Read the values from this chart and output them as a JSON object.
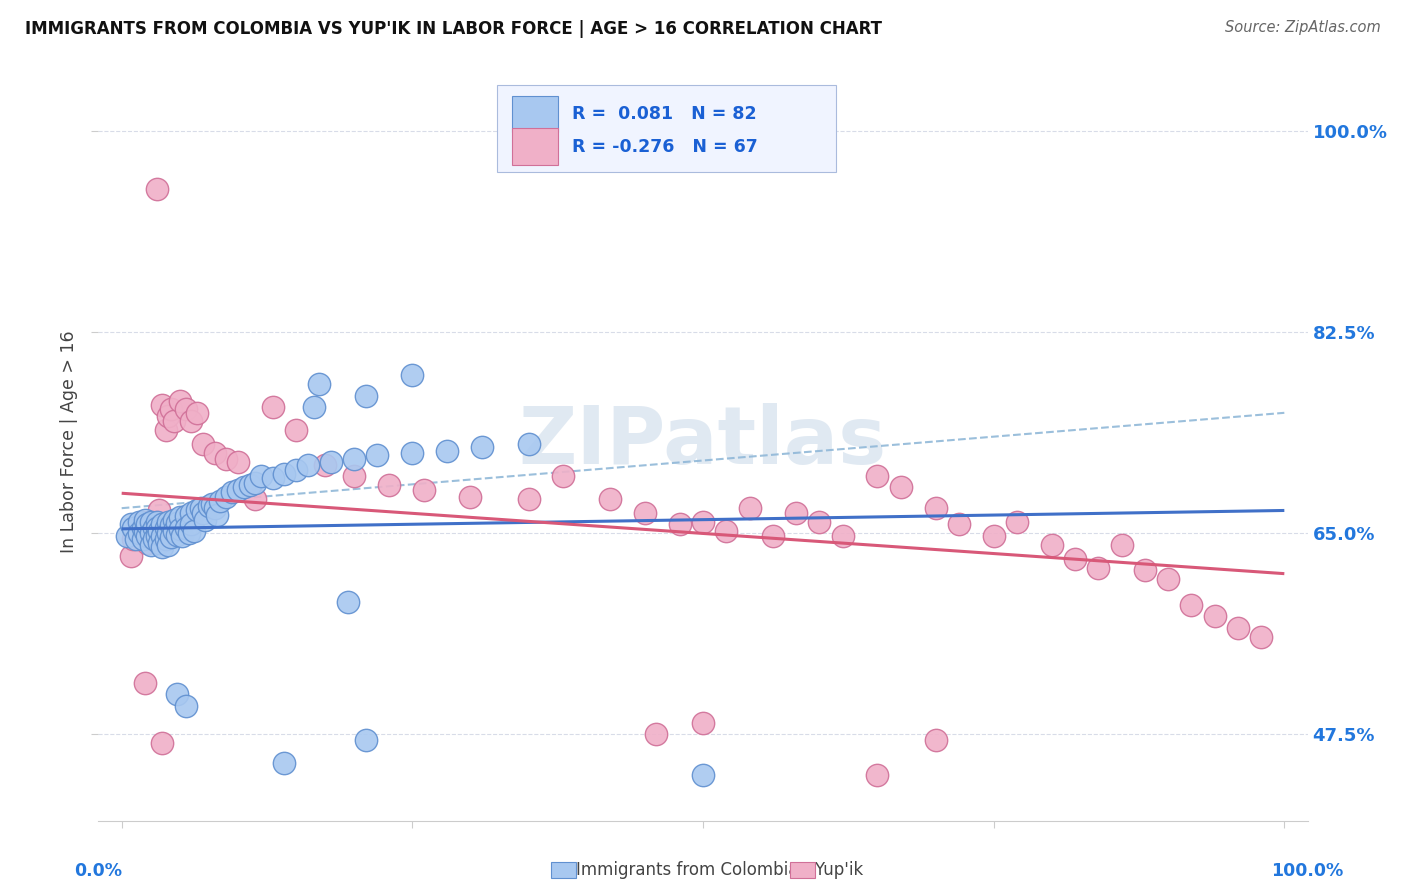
{
  "title": "IMMIGRANTS FROM COLOMBIA VS YUP'IK IN LABOR FORCE | AGE > 16 CORRELATION CHART",
  "source": "Source: ZipAtlas.com",
  "ylabel": "In Labor Force | Age > 16",
  "legend_label1": "Immigrants from Colombia",
  "legend_label2": "Yup'ik",
  "r1": 0.081,
  "n1": 82,
  "r2": -0.276,
  "n2": 67,
  "xlim": [
    -0.02,
    1.02
  ],
  "ylim": [
    0.4,
    1.06
  ],
  "yticks": [
    0.475,
    0.65,
    0.825,
    1.0
  ],
  "ytick_labels": [
    "47.5%",
    "65.0%",
    "82.5%",
    "100.0%"
  ],
  "color_blue_fill": "#a8c8f0",
  "color_blue_edge": "#6090d0",
  "color_pink_fill": "#f0b0c8",
  "color_pink_edge": "#d07098",
  "color_blue_line": "#4070c8",
  "color_pink_line": "#d85878",
  "color_dashed": "#90b8d8",
  "background_color": "#ffffff",
  "grid_color": "#d8dce8",
  "blue_x": [
    0.005,
    0.008,
    0.01,
    0.012,
    0.015,
    0.015,
    0.018,
    0.018,
    0.02,
    0.02,
    0.022,
    0.022,
    0.025,
    0.025,
    0.025,
    0.028,
    0.028,
    0.03,
    0.03,
    0.03,
    0.032,
    0.032,
    0.035,
    0.035,
    0.035,
    0.038,
    0.038,
    0.04,
    0.04,
    0.04,
    0.042,
    0.042,
    0.045,
    0.045,
    0.048,
    0.048,
    0.05,
    0.05,
    0.052,
    0.055,
    0.055,
    0.058,
    0.06,
    0.06,
    0.062,
    0.065,
    0.068,
    0.07,
    0.072,
    0.075,
    0.078,
    0.08,
    0.082,
    0.085,
    0.09,
    0.095,
    0.1,
    0.105,
    0.11,
    0.115,
    0.12,
    0.13,
    0.14,
    0.15,
    0.16,
    0.18,
    0.2,
    0.22,
    0.25,
    0.28,
    0.31,
    0.35,
    0.165,
    0.21,
    0.17,
    0.25,
    0.195,
    0.048,
    0.055,
    0.21,
    0.14,
    0.5
  ],
  "blue_y": [
    0.648,
    0.658,
    0.655,
    0.645,
    0.66,
    0.65,
    0.655,
    0.645,
    0.652,
    0.662,
    0.648,
    0.658,
    0.66,
    0.65,
    0.64,
    0.655,
    0.645,
    0.66,
    0.655,
    0.648,
    0.652,
    0.642,
    0.658,
    0.648,
    0.638,
    0.655,
    0.645,
    0.66,
    0.65,
    0.64,
    0.657,
    0.647,
    0.662,
    0.652,
    0.659,
    0.649,
    0.664,
    0.654,
    0.648,
    0.665,
    0.655,
    0.65,
    0.668,
    0.658,
    0.652,
    0.67,
    0.672,
    0.668,
    0.662,
    0.674,
    0.676,
    0.672,
    0.666,
    0.678,
    0.682,
    0.686,
    0.688,
    0.69,
    0.692,
    0.694,
    0.7,
    0.698,
    0.702,
    0.705,
    0.71,
    0.712,
    0.715,
    0.718,
    0.72,
    0.722,
    0.725,
    0.728,
    0.76,
    0.77,
    0.78,
    0.788,
    0.59,
    0.51,
    0.5,
    0.47,
    0.45,
    0.44
  ],
  "pink_x": [
    0.008,
    0.01,
    0.012,
    0.015,
    0.018,
    0.02,
    0.022,
    0.025,
    0.028,
    0.03,
    0.032,
    0.035,
    0.038,
    0.04,
    0.042,
    0.045,
    0.05,
    0.055,
    0.06,
    0.065,
    0.07,
    0.08,
    0.09,
    0.1,
    0.115,
    0.13,
    0.15,
    0.175,
    0.2,
    0.23,
    0.26,
    0.3,
    0.35,
    0.38,
    0.42,
    0.45,
    0.48,
    0.5,
    0.52,
    0.54,
    0.56,
    0.58,
    0.6,
    0.62,
    0.65,
    0.67,
    0.7,
    0.72,
    0.75,
    0.77,
    0.8,
    0.82,
    0.84,
    0.86,
    0.88,
    0.9,
    0.92,
    0.94,
    0.96,
    0.98,
    0.02,
    0.035,
    0.03,
    0.46,
    0.65,
    0.5,
    0.7
  ],
  "pink_y": [
    0.63,
    0.645,
    0.655,
    0.648,
    0.66,
    0.65,
    0.642,
    0.658,
    0.648,
    0.66,
    0.67,
    0.762,
    0.74,
    0.752,
    0.758,
    0.748,
    0.765,
    0.758,
    0.748,
    0.755,
    0.728,
    0.72,
    0.715,
    0.712,
    0.68,
    0.76,
    0.74,
    0.71,
    0.7,
    0.692,
    0.688,
    0.682,
    0.68,
    0.7,
    0.68,
    0.668,
    0.658,
    0.66,
    0.652,
    0.672,
    0.648,
    0.668,
    0.66,
    0.648,
    0.7,
    0.69,
    0.672,
    0.658,
    0.648,
    0.66,
    0.64,
    0.628,
    0.62,
    0.64,
    0.618,
    0.61,
    0.588,
    0.578,
    0.568,
    0.56,
    0.52,
    0.468,
    0.95,
    0.475,
    0.44,
    0.485,
    0.47
  ],
  "blue_trend": [
    0.654,
    0.67
  ],
  "pink_trend": [
    0.685,
    0.615
  ],
  "dash_trend": [
    0.672,
    0.755
  ],
  "watermark": "ZIPatlas",
  "watermark_color": "#c8d8e8"
}
